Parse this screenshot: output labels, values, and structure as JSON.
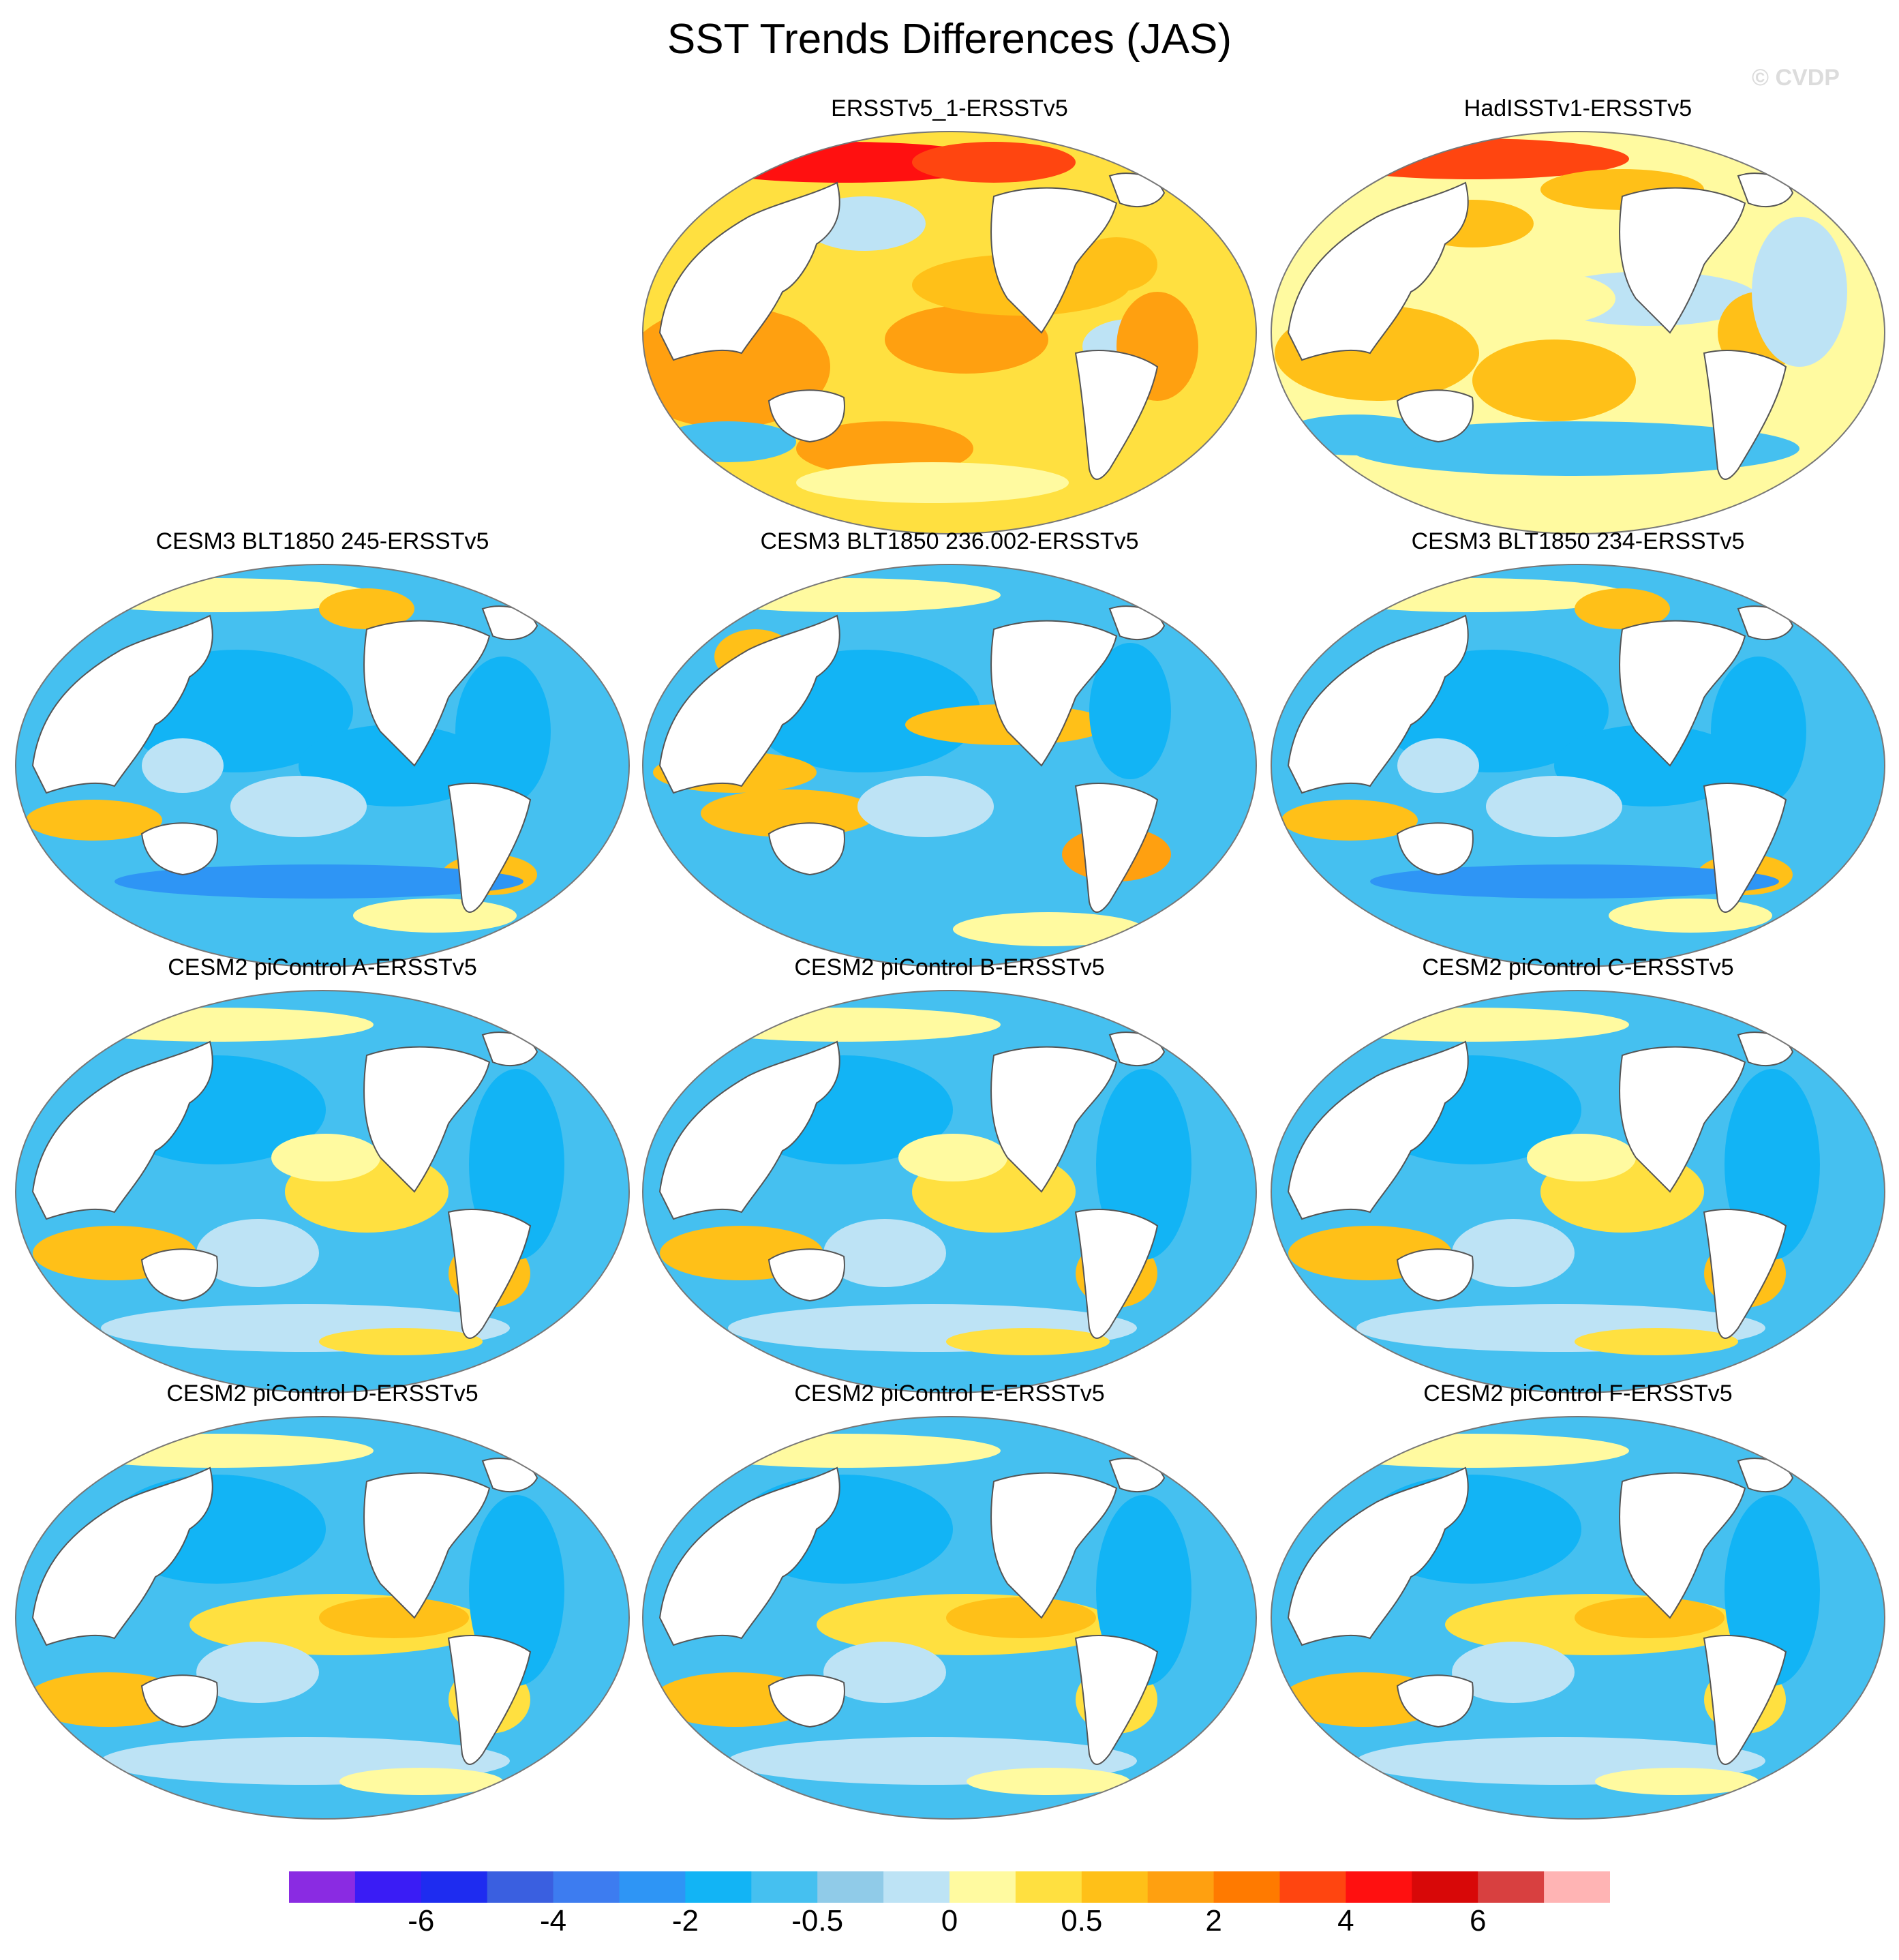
{
  "title": "SST Trends Differences (JAS)",
  "watermark": "© CVDP",
  "panels": [
    {
      "title": "ERSSTv5_1-ERSSTv5",
      "variant": 0
    },
    {
      "title": "HadISSTv1-ERSSTv5",
      "variant": 1
    },
    {
      "title": "CESM3 BLT1850 245-ERSSTv5",
      "variant": 2
    },
    {
      "title": "CESM3 BLT1850 236.002-ERSSTv5",
      "variant": 3
    },
    {
      "title": "CESM3 BLT1850 234-ERSSTv5",
      "variant": 2
    },
    {
      "title": "CESM2 piControl A-ERSSTv5",
      "variant": 4
    },
    {
      "title": "CESM2 piControl B-ERSSTv5",
      "variant": 4
    },
    {
      "title": "CESM2 piControl C-ERSSTv5",
      "variant": 4
    },
    {
      "title": "CESM2 piControl D-ERSSTv5",
      "variant": 5
    },
    {
      "title": "CESM2 piControl E-ERSSTv5",
      "variant": 5
    },
    {
      "title": "CESM2 piControl F-ERSSTv5",
      "variant": 5
    }
  ],
  "colorbar": {
    "colors": [
      "#8a2be2",
      "#3a1cf5",
      "#1e2cf0",
      "#3a5fe0",
      "#3d7cf0",
      "#2e95f5",
      "#12b4f5",
      "#45c0f0",
      "#90cbe8",
      "#bde3f5",
      "#fffaa0",
      "#ffe040",
      "#ffc018",
      "#ffa010",
      "#ff7a00",
      "#ff4510",
      "#ff1010",
      "#d80808",
      "#d84040",
      "#ffb4b4"
    ],
    "labels": [
      "-6",
      "-4",
      "-2",
      "-0.5",
      "0",
      "0.5",
      "2",
      "4",
      "6"
    ]
  }
}
